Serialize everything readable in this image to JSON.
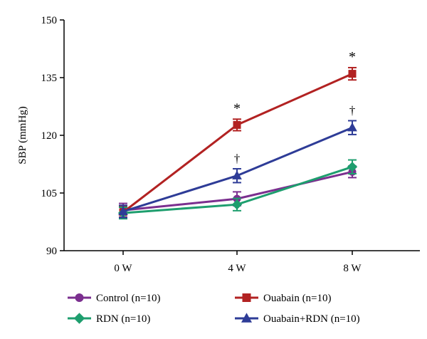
{
  "chart_data": {
    "type": "line",
    "ylabel": "SBP (mmHg)",
    "xlabel": "",
    "categories": [
      "0 W",
      "4 W",
      "8 W"
    ],
    "ylim": [
      90,
      150
    ],
    "yticks": [
      90,
      105,
      120,
      135,
      150
    ],
    "grid": false,
    "legend_position": "bottom",
    "series": [
      {
        "name": "Control (n=10)",
        "color": "#7b2f8f",
        "marker": "circle",
        "values": [
          100.5,
          103.5,
          110.5
        ],
        "errors": [
          1.8,
          1.8,
          1.5
        ],
        "annotations": [
          "",
          "",
          ""
        ]
      },
      {
        "name": "Ouabain (n=10)",
        "color": "#b22222",
        "marker": "square",
        "values": [
          100.0,
          122.7,
          136.0
        ],
        "errors": [
          1.5,
          1.5,
          1.6
        ],
        "annotations": [
          "",
          "*",
          "*"
        ]
      },
      {
        "name": "RDN (n=10)",
        "color": "#1e9e6e",
        "marker": "diamond",
        "values": [
          99.8,
          102.0,
          111.8
        ],
        "errors": [
          1.5,
          1.6,
          1.8
        ],
        "annotations": [
          "",
          "",
          ""
        ]
      },
      {
        "name": "Ouabain+RDN (n=10)",
        "color": "#2e3c97",
        "marker": "triangle",
        "values": [
          100.2,
          109.5,
          122.0
        ],
        "errors": [
          1.6,
          1.8,
          1.8
        ],
        "annotations": [
          "",
          "†",
          "†"
        ]
      }
    ]
  }
}
